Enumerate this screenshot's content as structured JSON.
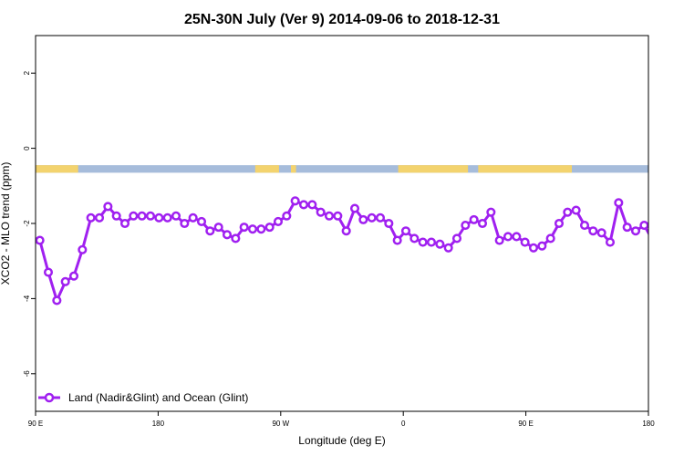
{
  "chart_data": {
    "type": "line",
    "title": "25N-30N July (Ver 9)   2014-09-06 to 2018-12-31",
    "xlabel": "Longitude (deg E)",
    "ylabel": "XCO2 - MLO trend (ppm)",
    "xlim": [
      90,
      450
    ],
    "ylim": [
      -7,
      3
    ],
    "x_ticks": [
      {
        "value": 90,
        "label": "90 E"
      },
      {
        "value": 162,
        "label": "180"
      },
      {
        "value": 234,
        "label": "90 W"
      },
      {
        "value": 306,
        "label": "0"
      },
      {
        "value": 378,
        "label": "90 E"
      },
      {
        "value": 450,
        "label": "180"
      }
    ],
    "y_ticks": [
      {
        "value": 2,
        "label": "2"
      },
      {
        "value": 0,
        "label": "0"
      },
      {
        "value": -2,
        "label": "-2"
      },
      {
        "value": -4,
        "label": "-4"
      },
      {
        "value": -6,
        "label": "-6"
      }
    ],
    "grid": false,
    "legend_position": "bottom-left",
    "series": [
      {
        "name": "Land (Nadir&Glint) and Ocean (Glint)",
        "color": "#a020f0",
        "x": [
          92.5,
          97.5,
          102.5,
          107.5,
          112.5,
          117.5,
          122.5,
          127.5,
          132.5,
          137.5,
          142.5,
          147.5,
          152.5,
          157.5,
          162.5,
          167.5,
          172.5,
          177.5,
          182.5,
          187.5,
          192.5,
          197.5,
          202.5,
          207.5,
          212.5,
          217.5,
          222.5,
          227.5,
          232.5,
          237.5,
          242.5,
          247.5,
          252.5,
          257.5,
          262.5,
          267.5,
          272.5,
          277.5,
          282.5,
          287.5,
          292.5,
          297.5,
          302.5,
          307.5,
          312.5,
          317.5,
          322.5,
          327.5,
          332.5,
          337.5,
          342.5,
          347.5,
          352.5,
          357.5,
          362.5,
          367.5,
          372.5,
          377.5,
          382.5,
          387.5,
          392.5,
          397.5,
          402.5,
          407.5,
          412.5,
          417.5,
          422.5,
          427.5,
          432.5,
          437.5,
          442.5,
          447.5,
          452.5
        ],
        "values": [
          -2.45,
          -3.3,
          -4.05,
          -3.55,
          -3.4,
          -2.7,
          -1.85,
          -1.85,
          -1.55,
          -1.8,
          -2.0,
          -1.8,
          -1.8,
          -1.8,
          -1.85,
          -1.85,
          -1.8,
          -2.0,
          -1.85,
          -1.95,
          -2.2,
          -2.1,
          -2.3,
          -2.4,
          -2.1,
          -2.15,
          -2.15,
          -2.1,
          -1.95,
          -1.8,
          -1.4,
          -1.5,
          -1.5,
          -1.7,
          -1.8,
          -1.8,
          -2.2,
          -1.6,
          -1.9,
          -1.85,
          -1.85,
          -2.0,
          -2.45,
          -2.2,
          -2.4,
          -2.5,
          -2.5,
          -2.55,
          -2.65,
          -2.4,
          -2.05,
          -1.9,
          -2.0,
          -1.7,
          -2.45,
          -2.35,
          -2.35,
          -2.5,
          -2.65,
          -2.6,
          -2.4,
          -2.0,
          -1.7,
          -1.65,
          -2.05,
          -2.2,
          -2.25,
          -2.5,
          -1.45,
          -2.1,
          -2.2,
          -2.05,
          -2.45
        ]
      }
    ],
    "surface_strip": {
      "y_range": [
        -0.45,
        -0.65
      ],
      "land_color": "#f3d36e",
      "ocean_color": "#a6bcdb",
      "land_ranges": [
        [
          90,
          115
        ],
        [
          219,
          233
        ],
        [
          240,
          243
        ],
        [
          303,
          344
        ],
        [
          350,
          405
        ]
      ]
    }
  }
}
